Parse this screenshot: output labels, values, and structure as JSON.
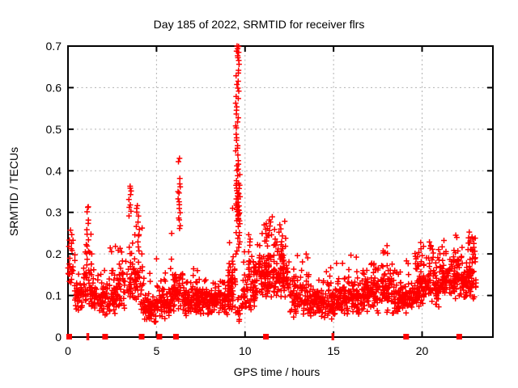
{
  "window": {
    "background": "#ffffff"
  },
  "colors": {
    "marker": "#ff0000",
    "grid": "#b0b0b0",
    "axis": "#000000",
    "text": "#000000"
  },
  "chart_data": {
    "type": "scatter",
    "title": "Day 185 of 2022, SRMTID for receiver flrs",
    "xlabel": "GPS time / hours",
    "ylabel": "SRMTID / TECUs",
    "xlim": [
      0,
      24
    ],
    "ylim": [
      0,
      0.7
    ],
    "xticks": [
      {
        "value": 0,
        "label": "0"
      },
      {
        "value": 5,
        "label": "5"
      },
      {
        "value": 10,
        "label": "10"
      },
      {
        "value": 15,
        "label": "15"
      },
      {
        "value": 20,
        "label": "20"
      }
    ],
    "yticks": [
      {
        "value": 0.0,
        "label": "0"
      },
      {
        "value": 0.1,
        "label": "0.1"
      },
      {
        "value": 0.2,
        "label": "0.2"
      },
      {
        "value": 0.3,
        "label": "0.3"
      },
      {
        "value": 0.4,
        "label": "0.4"
      },
      {
        "value": 0.5,
        "label": "0.5"
      },
      {
        "value": 0.6,
        "label": "0.6"
      },
      {
        "value": 0.7,
        "label": "0.7"
      }
    ],
    "grid": true,
    "legend": "none",
    "marker": {
      "symbol": "plus",
      "color": "#ff0000",
      "size": 7
    },
    "seed": 185,
    "note": "Dense GPS scintillation-style scatter, ~2300 points. bands = [x_start, x_end, band_low, band_high, envelope_max, n_points]; clusters = [x_center, x_halfwidth, y_min, y_max, n_points] for spike columns; points = notable individual [x,y].",
    "bands": [
      [
        0.0,
        0.35,
        0.1,
        0.2,
        0.26,
        16
      ],
      [
        0.35,
        0.85,
        0.06,
        0.14,
        0.22,
        40
      ],
      [
        0.85,
        1.35,
        0.06,
        0.2,
        0.27,
        48
      ],
      [
        1.35,
        2.05,
        0.05,
        0.13,
        0.17,
        60
      ],
      [
        2.05,
        2.9,
        0.05,
        0.16,
        0.22,
        70
      ],
      [
        2.9,
        4.2,
        0.06,
        0.2,
        0.27,
        100
      ],
      [
        4.2,
        5.0,
        0.03,
        0.1,
        0.15,
        70
      ],
      [
        5.0,
        5.85,
        0.04,
        0.12,
        0.2,
        75
      ],
      [
        5.85,
        6.5,
        0.05,
        0.17,
        0.26,
        60
      ],
      [
        6.5,
        9.35,
        0.05,
        0.13,
        0.17,
        250
      ],
      [
        9.0,
        9.45,
        0.07,
        0.2,
        0.29,
        35
      ],
      [
        9.45,
        9.85,
        0.03,
        0.09,
        0.12,
        16
      ],
      [
        9.85,
        10.6,
        0.05,
        0.18,
        0.26,
        70
      ],
      [
        10.6,
        12.55,
        0.08,
        0.22,
        0.28,
        190
      ],
      [
        12.55,
        13.6,
        0.04,
        0.15,
        0.21,
        95
      ],
      [
        13.6,
        15.1,
        0.04,
        0.13,
        0.18,
        140
      ],
      [
        15.1,
        16.6,
        0.05,
        0.14,
        0.2,
        140
      ],
      [
        16.6,
        18.5,
        0.05,
        0.16,
        0.21,
        190
      ],
      [
        18.5,
        19.6,
        0.05,
        0.14,
        0.19,
        100
      ],
      [
        19.6,
        21.0,
        0.07,
        0.17,
        0.23,
        140
      ],
      [
        21.0,
        22.5,
        0.08,
        0.2,
        0.25,
        150
      ],
      [
        22.5,
        23.05,
        0.09,
        0.21,
        0.25,
        55
      ]
    ],
    "clusters": [
      [
        9.57,
        0.1,
        0.4,
        0.7,
        34
      ],
      [
        9.6,
        0.12,
        0.2,
        0.4,
        30
      ],
      [
        9.62,
        0.08,
        0.28,
        0.37,
        18
      ],
      [
        6.27,
        0.07,
        0.26,
        0.38,
        14
      ],
      [
        3.5,
        0.07,
        0.29,
        0.36,
        8
      ],
      [
        3.95,
        0.1,
        0.23,
        0.32,
        10
      ],
      [
        1.1,
        0.07,
        0.21,
        0.31,
        9
      ],
      [
        11.35,
        0.3,
        0.22,
        0.29,
        16
      ],
      [
        11.9,
        0.25,
        0.2,
        0.27,
        10
      ],
      [
        0.15,
        0.1,
        0.14,
        0.26,
        8
      ],
      [
        10.3,
        0.1,
        0.15,
        0.25,
        10
      ],
      [
        20.6,
        0.2,
        0.15,
        0.23,
        10
      ],
      [
        22.7,
        0.2,
        0.15,
        0.25,
        12
      ],
      [
        12.2,
        0.15,
        0.15,
        0.24,
        10
      ]
    ],
    "points": [
      [
        6.3,
        0.43
      ],
      [
        6.24,
        0.422
      ],
      [
        9.55,
        0.7
      ],
      [
        9.52,
        0.688
      ],
      [
        9.6,
        0.672
      ],
      [
        3.52,
        0.358
      ],
      [
        1.12,
        0.312
      ],
      [
        9.3,
        0.31
      ],
      [
        18.02,
        0.22
      ],
      [
        0.05,
        0.218
      ],
      [
        23.0,
        0.238
      ],
      [
        21.9,
        0.245
      ],
      [
        4.62,
        0.153
      ]
    ],
    "zero_markers": {
      "symbol": "filled-square",
      "color": "#ff0000",
      "x": [
        0.07,
        2.1,
        4.16,
        5.16,
        6.1,
        11.18,
        19.1,
        22.1
      ]
    },
    "zero_thin_marks": {
      "symbol": "thin-vertical-bar",
      "color": "#ff0000",
      "x": [
        1.08,
        1.16,
        14.92,
        15.0
      ]
    }
  }
}
